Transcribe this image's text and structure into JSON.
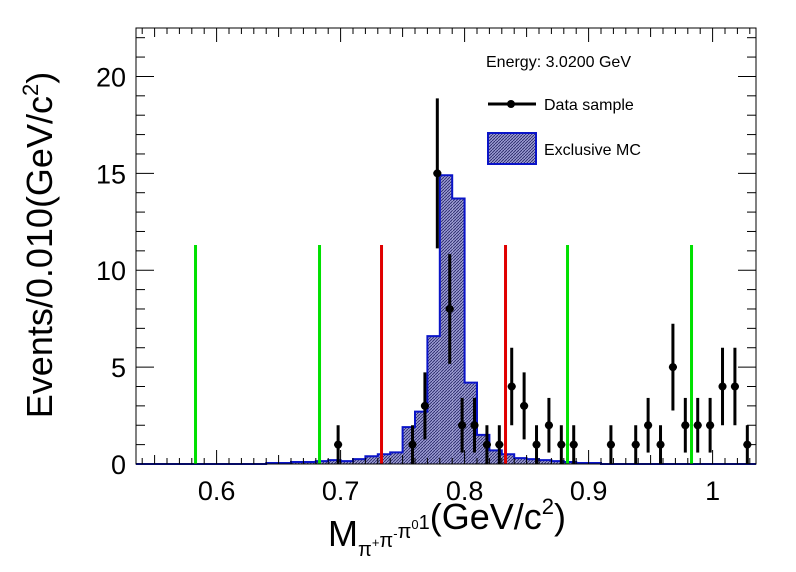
{
  "chart_data": {
    "type": "histogram",
    "ylabel_main": "Events/0.010(GeV/c",
    "ylabel_sup": "2",
    "ylabel_close": ")",
    "xlabel_main": "M",
    "xlabel_sub_parts": [
      {
        "t": "π",
        "sup": ""
      },
      {
        "t": "",
        "sup": "+"
      },
      {
        "t": "π",
        "sup": ""
      },
      {
        "t": "",
        "sup": "-"
      },
      {
        "t": "π",
        "sup": ""
      },
      {
        "t": "",
        "sup": "0"
      },
      {
        "t": "1",
        "sup": ""
      }
    ],
    "xlabel_unit": "(GeV/c",
    "xlabel_unit_sup": "2",
    "xlabel_unit_close": ")",
    "xlim": [
      0.535,
      1.035
    ],
    "ylim": [
      0,
      22.5
    ],
    "x_ticks": [
      {
        "v": 0.6,
        "label": "0.6"
      },
      {
        "v": 0.7,
        "label": "0.7"
      },
      {
        "v": 0.8,
        "label": "0.8"
      },
      {
        "v": 0.9,
        "label": "0.9"
      },
      {
        "v": 1.0,
        "label": "1"
      }
    ],
    "y_ticks": [
      {
        "v": 0,
        "label": "0"
      },
      {
        "v": 5,
        "label": "5"
      },
      {
        "v": 10,
        "label": "10"
      },
      {
        "v": 15,
        "label": "15"
      },
      {
        "v": 20,
        "label": "20"
      }
    ],
    "legend": {
      "position": "top-right",
      "title": "Energy: 3.0200 GeV",
      "data_label": "Data sample",
      "mc_label": "Exclusive MC"
    },
    "mc_histogram": {
      "name": "Exclusive MC",
      "fill_color": "#8c8cc8",
      "line_color": "#0a14c8",
      "bin_width": 0.01,
      "bins": [
        {
          "x": 0.64,
          "y": 0.05
        },
        {
          "x": 0.65,
          "y": 0.05
        },
        {
          "x": 0.66,
          "y": 0.1
        },
        {
          "x": 0.67,
          "y": 0.1
        },
        {
          "x": 0.68,
          "y": 0.15
        },
        {
          "x": 0.69,
          "y": 0.2
        },
        {
          "x": 0.7,
          "y": 0.15
        },
        {
          "x": 0.71,
          "y": 0.25
        },
        {
          "x": 0.72,
          "y": 0.4
        },
        {
          "x": 0.73,
          "y": 0.5
        },
        {
          "x": 0.74,
          "y": 0.6
        },
        {
          "x": 0.75,
          "y": 1.9
        },
        {
          "x": 0.76,
          "y": 2.7
        },
        {
          "x": 0.77,
          "y": 6.6
        },
        {
          "x": 0.78,
          "y": 14.9
        },
        {
          "x": 0.79,
          "y": 13.7
        },
        {
          "x": 0.8,
          "y": 4.2
        },
        {
          "x": 0.81,
          "y": 1.5
        },
        {
          "x": 0.82,
          "y": 0.7
        },
        {
          "x": 0.83,
          "y": 0.5
        },
        {
          "x": 0.84,
          "y": 0.3
        },
        {
          "x": 0.85,
          "y": 0.25
        },
        {
          "x": 0.86,
          "y": 0.2
        },
        {
          "x": 0.87,
          "y": 0.15
        },
        {
          "x": 0.88,
          "y": 0.1
        },
        {
          "x": 0.89,
          "y": 0.05
        },
        {
          "x": 0.9,
          "y": 0.05
        }
      ]
    },
    "data_points": {
      "name": "Data sample",
      "color": "#000000",
      "points": [
        {
          "x": 0.698,
          "y": 1,
          "err": 1.0
        },
        {
          "x": 0.758,
          "y": 1,
          "err": 1.0
        },
        {
          "x": 0.768,
          "y": 3,
          "err": 1.73
        },
        {
          "x": 0.778,
          "y": 15,
          "err": 3.87
        },
        {
          "x": 0.788,
          "y": 8,
          "err": 2.83
        },
        {
          "x": 0.798,
          "y": 2,
          "err": 1.41
        },
        {
          "x": 0.808,
          "y": 2,
          "err": 1.41
        },
        {
          "x": 0.818,
          "y": 1,
          "err": 1.0
        },
        {
          "x": 0.828,
          "y": 1,
          "err": 1.0
        },
        {
          "x": 0.838,
          "y": 4,
          "err": 2.0
        },
        {
          "x": 0.848,
          "y": 3,
          "err": 1.73
        },
        {
          "x": 0.858,
          "y": 1,
          "err": 1.0
        },
        {
          "x": 0.868,
          "y": 2,
          "err": 1.41
        },
        {
          "x": 0.878,
          "y": 1,
          "err": 1.0
        },
        {
          "x": 0.888,
          "y": 1,
          "err": 1.0
        },
        {
          "x": 0.918,
          "y": 1,
          "err": 1.0
        },
        {
          "x": 0.938,
          "y": 1,
          "err": 1.0
        },
        {
          "x": 0.948,
          "y": 2,
          "err": 1.41
        },
        {
          "x": 0.958,
          "y": 1,
          "err": 1.0
        },
        {
          "x": 0.968,
          "y": 5,
          "err": 2.24
        },
        {
          "x": 0.978,
          "y": 2,
          "err": 1.41
        },
        {
          "x": 0.988,
          "y": 2,
          "err": 1.41
        },
        {
          "x": 0.998,
          "y": 2,
          "err": 1.41
        },
        {
          "x": 1.008,
          "y": 4,
          "err": 2.0
        },
        {
          "x": 1.018,
          "y": 4,
          "err": 2.0
        },
        {
          "x": 1.028,
          "y": 1,
          "err": 1.0
        }
      ]
    },
    "vertical_lines": [
      {
        "x": 0.583,
        "y_top": 11.3,
        "color": "#00e000",
        "kind": "sideband"
      },
      {
        "x": 0.683,
        "y_top": 11.3,
        "color": "#00e000",
        "kind": "sideband"
      },
      {
        "x": 0.733,
        "y_top": 11.3,
        "color": "#e00000",
        "kind": "signal"
      },
      {
        "x": 0.833,
        "y_top": 11.3,
        "color": "#e00000",
        "kind": "signal"
      },
      {
        "x": 0.883,
        "y_top": 11.3,
        "color": "#00e000",
        "kind": "sideband"
      },
      {
        "x": 0.983,
        "y_top": 11.3,
        "color": "#00e000",
        "kind": "sideband"
      }
    ]
  }
}
